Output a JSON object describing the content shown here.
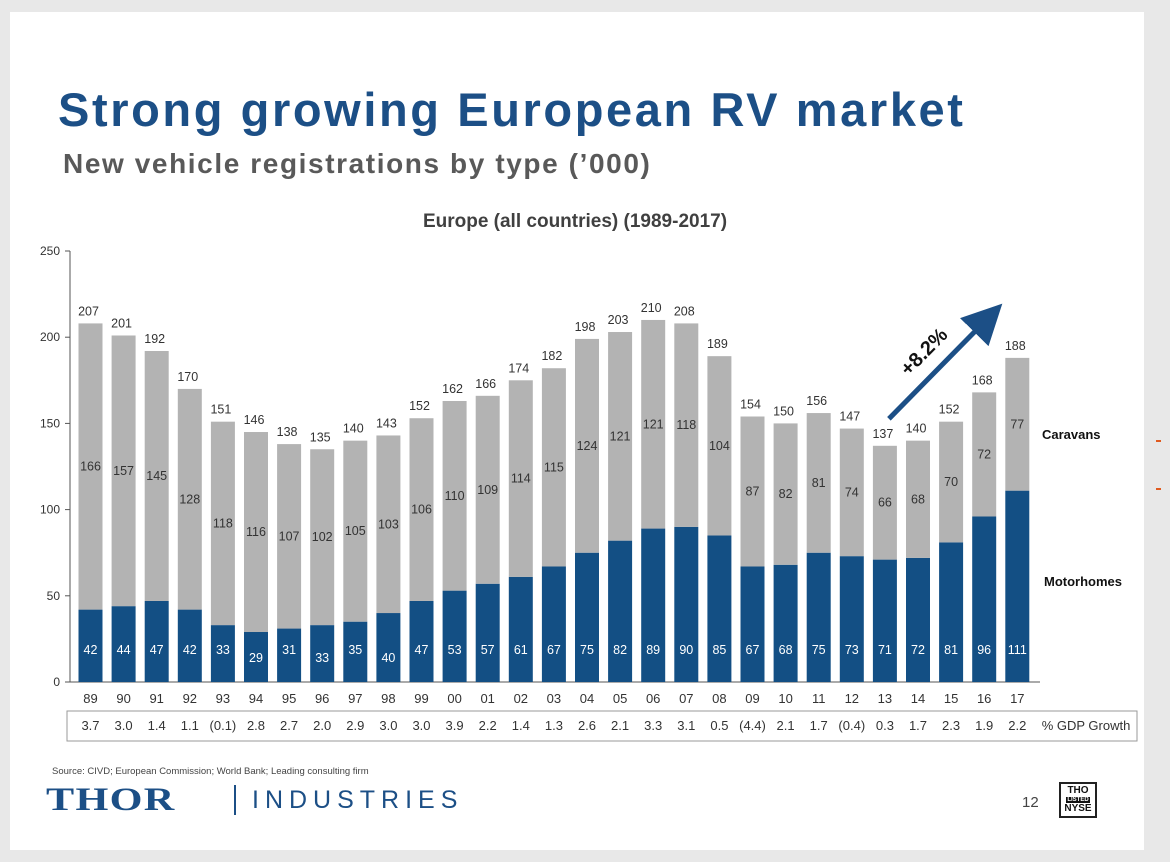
{
  "slide": {
    "title": "Strong growing European RV market",
    "subtitle": "New vehicle registrations by type (’000)",
    "source": "Source: CIVD; European Commission; World Bank; Leading consulting firm",
    "page_number": "12",
    "logo": {
      "thor": "THOR",
      "industries": "INDUSTRIES"
    },
    "badge": {
      "line1": "THO",
      "line2": "LISTED",
      "line3": "NYSE"
    }
  },
  "colors": {
    "motorhomes": "#134f84",
    "caravans": "#b3b3b3",
    "title": "#1c4f86",
    "arrow": "#1c4f86"
  },
  "chart_data": {
    "type": "bar",
    "stacked": true,
    "title": "Europe (all countries) (1989-2017)",
    "categories": [
      "89",
      "90",
      "91",
      "92",
      "93",
      "94",
      "95",
      "96",
      "97",
      "98",
      "99",
      "00",
      "01",
      "02",
      "03",
      "04",
      "05",
      "06",
      "07",
      "08",
      "09",
      "10",
      "11",
      "12",
      "13",
      "14",
      "15",
      "16",
      "17"
    ],
    "series": [
      {
        "name": "Motorhomes",
        "values": [
          42,
          44,
          47,
          42,
          33,
          29,
          31,
          33,
          35,
          40,
          47,
          53,
          57,
          61,
          67,
          75,
          82,
          89,
          90,
          85,
          67,
          68,
          75,
          73,
          71,
          72,
          81,
          96,
          111
        ]
      },
      {
        "name": "Caravans",
        "values": [
          166,
          157,
          145,
          128,
          118,
          116,
          107,
          102,
          105,
          103,
          106,
          110,
          109,
          114,
          115,
          124,
          121,
          121,
          118,
          104,
          87,
          82,
          81,
          74,
          66,
          68,
          70,
          72,
          77
        ]
      }
    ],
    "totals": [
      207,
      201,
      192,
      170,
      151,
      146,
      138,
      135,
      140,
      143,
      152,
      162,
      166,
      174,
      182,
      198,
      203,
      210,
      208,
      189,
      154,
      150,
      156,
      147,
      137,
      140,
      152,
      168,
      188
    ],
    "ylim": [
      0,
      250
    ],
    "yticks": [
      0,
      50,
      100,
      150,
      200,
      250
    ],
    "gdp_growth_label": "% GDP Growth",
    "gdp_growth": [
      "3.7",
      "3.0",
      "1.4",
      "1.1",
      "(0.1)",
      "2.8",
      "2.7",
      "2.0",
      "2.9",
      "3.0",
      "3.0",
      "3.9",
      "2.2",
      "1.4",
      "1.3",
      "2.6",
      "2.1",
      "3.3",
      "3.1",
      "0.5",
      "(4.4)",
      "2.1",
      "1.7",
      "(0.4)",
      "0.3",
      "1.7",
      "2.3",
      "1.9",
      "2.2"
    ],
    "annotation": {
      "text": "+8.2%",
      "from_category": "13",
      "to_category": "17"
    },
    "legend": [
      "Caravans",
      "Motorhomes"
    ]
  }
}
